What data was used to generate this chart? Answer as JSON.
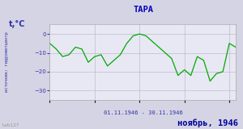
{
  "title": "ТАРА",
  "ylabel": "t,°C",
  "xlabel": "01.11.1946 - 30.11.1946",
  "footer": "ноябрь, 1946",
  "source_label": "источник: гидрометцентр",
  "watermark": "lab127",
  "ylim": [
    -35,
    5
  ],
  "yticks": [
    0,
    -10,
    -20,
    -30
  ],
  "bg_outer": "#d4d4e4",
  "bg_inner": "#e8e8f4",
  "line_color": "#00aa00",
  "title_color": "#0000bb",
  "footer_color": "#000099",
  "label_color": "#3333aa",
  "grid_color": "#bbbbcc",
  "days": [
    1,
    2,
    3,
    4,
    5,
    6,
    7,
    8,
    9,
    10,
    11,
    12,
    13,
    14,
    15,
    16,
    17,
    18,
    19,
    20,
    21,
    22,
    23,
    24,
    25,
    26,
    27,
    28,
    29,
    30
  ],
  "temps": [
    -5,
    -8,
    -12,
    -11,
    -7,
    -8,
    -15,
    -12,
    -11,
    -17,
    -14,
    -11,
    -5,
    -1,
    0,
    -1,
    -4,
    -7,
    -10,
    -13,
    -22,
    -19,
    -22,
    -12,
    -14,
    -25,
    -21,
    -20,
    -5,
    -7
  ]
}
